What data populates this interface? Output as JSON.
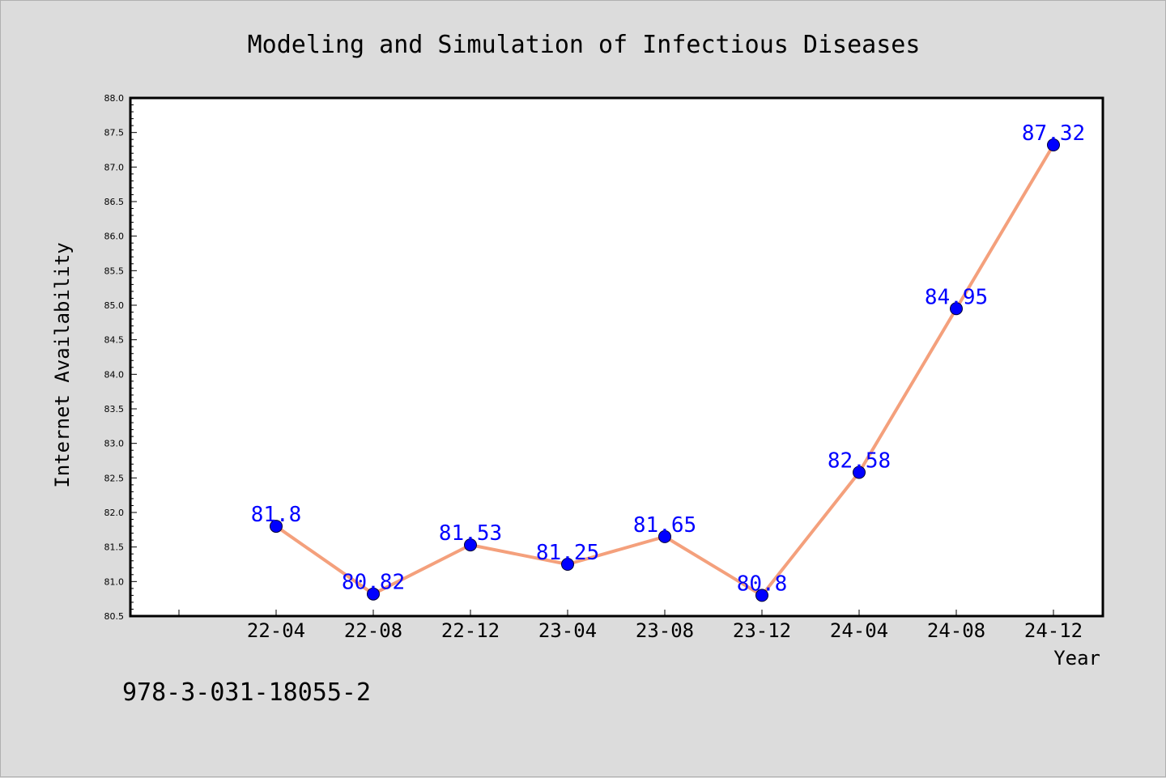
{
  "chart_data": {
    "type": "line",
    "title": "Modeling and Simulation of Infectious Diseases",
    "xlabel": "Year",
    "ylabel": "Internet Availability",
    "categories": [
      "22-04",
      "22-08",
      "22-12",
      "23-04",
      "23-08",
      "23-12",
      "24-04",
      "24-08",
      "24-12"
    ],
    "values": [
      81.8,
      80.82,
      81.53,
      81.25,
      81.65,
      80.8,
      82.58,
      84.95,
      87.32
    ],
    "data_labels": [
      "81.8",
      "80.82",
      "81.53",
      "81.25",
      "81.65",
      "80.8",
      "82.58",
      "84.95",
      "87.32"
    ],
    "yticks": [
      "80.5",
      "81.0",
      "81.5",
      "82.0",
      "82.5",
      "83.0",
      "83.5",
      "84.0",
      "84.5",
      "85.0",
      "85.5",
      "86.0",
      "86.5",
      "87.0",
      "87.5",
      "88.0"
    ],
    "ylim": [
      80.5,
      88.0
    ],
    "grid": false,
    "line_color": "#f4a07c",
    "marker_color": "#0000ff",
    "label_color": "#0000ff"
  },
  "footer": {
    "isbn": "978-3-031-18055-2"
  }
}
